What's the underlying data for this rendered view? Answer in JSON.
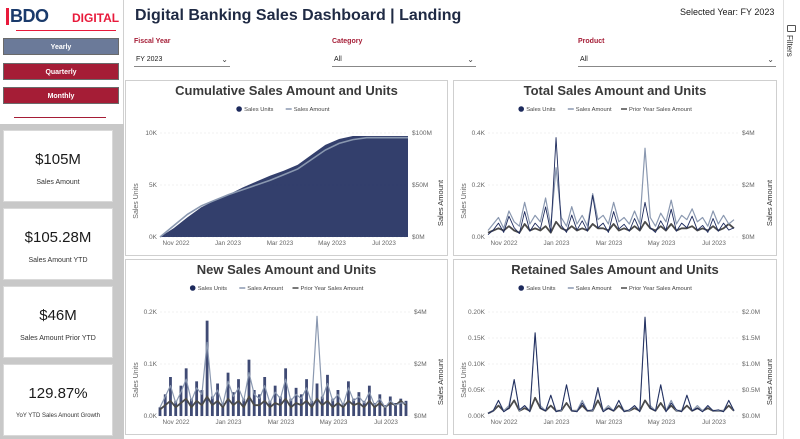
{
  "sidebar": {
    "logo_bdo": "BDO",
    "logo_digital": "DIGITAL",
    "periods": [
      "Yearly",
      "Quarterly",
      "Monthly"
    ],
    "active_period": "Yearly",
    "kpis": [
      {
        "value": "$105M",
        "label": "Sales Amount"
      },
      {
        "value": "$105.28M",
        "label": "Sales Amount YTD"
      },
      {
        "value": "$46M",
        "label": "Sales Amount Prior YTD"
      },
      {
        "value": "129.87%",
        "label": "YoY YTD Sales Amount Growth"
      }
    ]
  },
  "header": {
    "title": "Digital Banking Sales Dashboard | Landing",
    "selected_year": "Selected Year: FY 2023",
    "filters_label": "Filters"
  },
  "slicers": [
    {
      "label": "Fiscal Year",
      "value": "FY 2023"
    },
    {
      "label": "Category",
      "value": "All"
    },
    {
      "label": "Product",
      "value": "All"
    }
  ],
  "colors": {
    "navy": "#1d2a5c",
    "steel": "#8a98b0",
    "dark_gray": "#4a4a4a",
    "accent_red": "#a51d36"
  },
  "chart_data": [
    {
      "type": "area",
      "title": "Cumulative Sales Amount and Units",
      "legend": [
        "Sales Units",
        "Sales Amount"
      ],
      "ylabel": "Sales Units",
      "y2label": "Sales Amount",
      "x_ticks": [
        "Nov 2022",
        "Jan 2023",
        "Mar 2023",
        "May 2023",
        "Jul 2023"
      ],
      "y_ticks": [
        "0K",
        "5K",
        "10K"
      ],
      "y2_ticks": [
        "$0M",
        "$50M",
        "$100M"
      ],
      "ylim": [
        0,
        10500
      ],
      "x_months": [
        0,
        0.5,
        1,
        1.5,
        2,
        2.5,
        3,
        3.5,
        4,
        4.5,
        5,
        5.5,
        6,
        6.5,
        7,
        7.5,
        8,
        8.5,
        9
      ],
      "sales_units_cum": [
        0,
        900,
        2000,
        3000,
        3700,
        4300,
        5000,
        5600,
        6200,
        6700,
        7300,
        8300,
        9300,
        9900,
        10200,
        10200,
        10200,
        10200,
        10200
      ],
      "sales_amount_cum_m": [
        0,
        12,
        24,
        33,
        39,
        45,
        50,
        55,
        60,
        66,
        72,
        82,
        92,
        99,
        103,
        105,
        105,
        105,
        105
      ]
    },
    {
      "type": "line",
      "title": "Total Sales Amount and Units",
      "legend": [
        "Sales Units",
        "Sales Amount",
        "Prior Year Sales Amount"
      ],
      "ylabel": "Sales Units",
      "y2label": "Sales Amount",
      "x_ticks": [
        "Nov 2022",
        "Jan 2023",
        "Mar 2023",
        "May 2023",
        "Jul 2023"
      ],
      "y_ticks": [
        "0.0K",
        "0.2K",
        "0.4K"
      ],
      "y2_ticks": [
        "$0M",
        "$2M",
        "$4M"
      ],
      "ylim": [
        0,
        450
      ],
      "sales_units": [
        10,
        30,
        60,
        20,
        90,
        40,
        15,
        110,
        25,
        60,
        35,
        130,
        20,
        430,
        50,
        20,
        95,
        30,
        70,
        25,
        180,
        40,
        60,
        20,
        110,
        35,
        55,
        25,
        80,
        30,
        150,
        40,
        20,
        70,
        30,
        120,
        25,
        60,
        40,
        90,
        30,
        50,
        20,
        80,
        25,
        60,
        30,
        40
      ],
      "sales_amount_m": [
        0.3,
        0.6,
        0.9,
        0.4,
        1.2,
        0.7,
        0.5,
        1.6,
        0.6,
        1.0,
        0.7,
        1.8,
        0.5,
        3.2,
        0.9,
        0.5,
        1.4,
        0.6,
        1.0,
        0.5,
        2.0,
        0.8,
        1.0,
        0.6,
        1.6,
        0.7,
        0.9,
        0.6,
        1.2,
        0.6,
        4.1,
        0.9,
        0.5,
        1.1,
        0.7,
        1.7,
        0.6,
        1.0,
        0.8,
        1.3,
        0.7,
        0.9,
        0.5,
        1.2,
        0.6,
        1.0,
        0.6,
        0.8
      ],
      "prior_year_sales_amount_m": [
        0.2,
        0.3,
        0.4,
        0.3,
        0.5,
        0.3,
        0.2,
        0.6,
        0.3,
        0.4,
        0.3,
        0.5,
        0.2,
        0.7,
        0.4,
        0.3,
        0.5,
        0.3,
        0.4,
        0.3,
        0.6,
        0.4,
        0.4,
        0.3,
        0.6,
        0.3,
        0.4,
        0.3,
        0.5,
        0.3,
        0.7,
        0.4,
        0.3,
        0.5,
        0.3,
        0.6,
        0.3,
        0.4,
        0.4,
        0.5,
        0.3,
        0.4,
        0.3,
        0.5,
        0.3,
        0.4,
        0.6,
        0.4
      ]
    },
    {
      "type": "line",
      "title": "New Sales Amount and Units",
      "legend": [
        "Sales Units",
        "Sales Amount",
        "Prior Year Sales Amount"
      ],
      "ylabel": "Sales Units",
      "y2label": "Sales Amount",
      "x_ticks": [
        "Nov 2022",
        "Jan 2023",
        "Mar 2023",
        "May 2023",
        "Jul 2023"
      ],
      "y_ticks": [
        "0.0K",
        "0.1K",
        "0.2K"
      ],
      "y2_ticks": [
        "$0M",
        "$2M",
        "$4M"
      ],
      "ylim": [
        0,
        240
      ],
      "sales_units": [
        20,
        50,
        90,
        35,
        70,
        110,
        40,
        80,
        60,
        220,
        45,
        75,
        30,
        100,
        55,
        85,
        40,
        130,
        60,
        50,
        90,
        35,
        70,
        45,
        110,
        40,
        65,
        50,
        85,
        35,
        75,
        45,
        95,
        40,
        60,
        30,
        80,
        40,
        55,
        35,
        70,
        30,
        50,
        25,
        45,
        30,
        40,
        35
      ],
      "sales_amount_m": [
        0.4,
        0.9,
        1.4,
        0.6,
        1.1,
        1.7,
        0.7,
        1.3,
        1.0,
        3.4,
        0.8,
        1.2,
        0.5,
        1.6,
        0.9,
        1.3,
        0.7,
        2.0,
        1.0,
        0.8,
        1.4,
        0.6,
        1.1,
        0.8,
        1.7,
        0.7,
        1.0,
        0.8,
        1.3,
        0.6,
        4.6,
        0.8,
        1.5,
        0.7,
        1.0,
        0.5,
        1.3,
        0.7,
        0.9,
        0.6,
        1.1,
        0.5,
        0.8,
        0.4,
        0.7,
        0.5,
        0.6,
        0.6
      ],
      "prior_year_sales_amount_m": [
        0.3,
        0.5,
        0.7,
        0.4,
        0.6,
        0.8,
        0.4,
        0.7,
        0.5,
        0.9,
        0.5,
        0.7,
        0.4,
        0.8,
        0.5,
        0.7,
        0.4,
        0.9,
        0.5,
        0.5,
        0.7,
        0.4,
        0.6,
        0.5,
        0.8,
        0.4,
        0.6,
        0.5,
        0.7,
        0.4,
        0.8,
        0.5,
        0.7,
        0.4,
        0.6,
        0.4,
        0.7,
        0.5,
        0.6,
        0.4,
        0.7,
        0.4,
        0.6,
        0.4,
        0.6,
        0.5,
        0.7,
        0.5
      ]
    },
    {
      "type": "line",
      "title": "Retained Sales Amount and Units",
      "legend": [
        "Sales Units",
        "Sales Amount",
        "Prior Year Sales Amount"
      ],
      "ylabel": "Sales Units",
      "y2label": "Sales Amount",
      "x_ticks": [
        "Nov 2022",
        "Jan 2023",
        "Mar 2023",
        "May 2023",
        "Jul 2023"
      ],
      "y_ticks": [
        "0.00K",
        "0.05K",
        "0.10K",
        "0.15K",
        "0.20K"
      ],
      "y2_ticks": [
        "$0.0M",
        "$0.5M",
        "$1.0M",
        "$1.5M",
        "$2.0M"
      ],
      "ylim": [
        0,
        200
      ],
      "sales_units": [
        5,
        10,
        30,
        8,
        15,
        70,
        12,
        20,
        8,
        160,
        15,
        10,
        40,
        8,
        12,
        60,
        10,
        8,
        25,
        10,
        12,
        55,
        8,
        15,
        10,
        30,
        8,
        12,
        20,
        8,
        190,
        15,
        10,
        60,
        8,
        25,
        12,
        8,
        40,
        10,
        15,
        8,
        20,
        10,
        12,
        8,
        30,
        10
      ],
      "sales_amount_m": [
        0.05,
        0.1,
        0.3,
        0.1,
        0.2,
        0.7,
        0.1,
        0.2,
        0.1,
        1.6,
        0.2,
        0.1,
        0.4,
        0.1,
        0.1,
        0.6,
        0.1,
        0.1,
        0.3,
        0.1,
        0.1,
        0.5,
        0.1,
        0.2,
        0.1,
        0.3,
        0.1,
        0.1,
        0.2,
        0.1,
        1.9,
        0.2,
        0.1,
        0.6,
        0.1,
        0.3,
        0.1,
        0.1,
        0.4,
        0.1,
        0.2,
        0.1,
        0.2,
        0.1,
        0.1,
        0.1,
        0.3,
        0.1
      ],
      "prior_year_sales_amount_m": [
        0.05,
        0.1,
        0.2,
        0.1,
        0.15,
        0.3,
        0.1,
        0.15,
        0.1,
        0.35,
        0.15,
        0.1,
        0.2,
        0.1,
        0.1,
        0.25,
        0.1,
        0.1,
        0.2,
        0.1,
        0.1,
        0.3,
        0.1,
        0.15,
        0.1,
        0.2,
        0.1,
        0.1,
        0.15,
        0.1,
        0.3,
        0.15,
        0.1,
        0.25,
        0.1,
        0.2,
        0.1,
        0.1,
        0.2,
        0.1,
        0.15,
        0.1,
        0.15,
        0.1,
        0.1,
        0.1,
        0.2,
        0.1
      ]
    }
  ]
}
